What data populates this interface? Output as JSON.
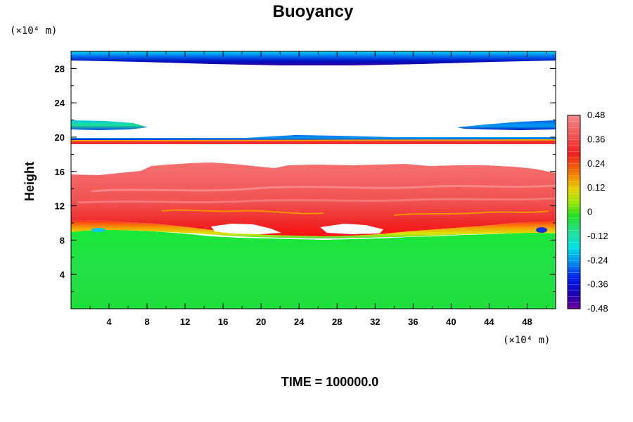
{
  "chart_data": {
    "type": "heatmap",
    "title": "Buoyancy",
    "ylabel": "Height",
    "x_unit": "(×10⁴ m)",
    "y_unit": "(×10⁴ m)",
    "xlim": [
      0,
      51
    ],
    "ylim": [
      0,
      30
    ],
    "x_ticks": [
      4,
      8,
      12,
      16,
      20,
      24,
      28,
      32,
      36,
      40,
      44,
      48
    ],
    "y_ticks": [
      4,
      8,
      12,
      16,
      20,
      24,
      28
    ],
    "colorbar": {
      "range": [
        -0.48,
        0.48
      ],
      "tick_labels": [
        "0.48",
        "0.36",
        "0.24",
        "0.12",
        "0",
        "-0.12",
        "-0.24",
        "-0.36",
        "-0.48"
      ],
      "tick_values": [
        0.48,
        0.36,
        0.24,
        0.12,
        0,
        -0.12,
        -0.24,
        -0.36,
        -0.48
      ]
    },
    "footer": "TIME = 100000.0"
  }
}
